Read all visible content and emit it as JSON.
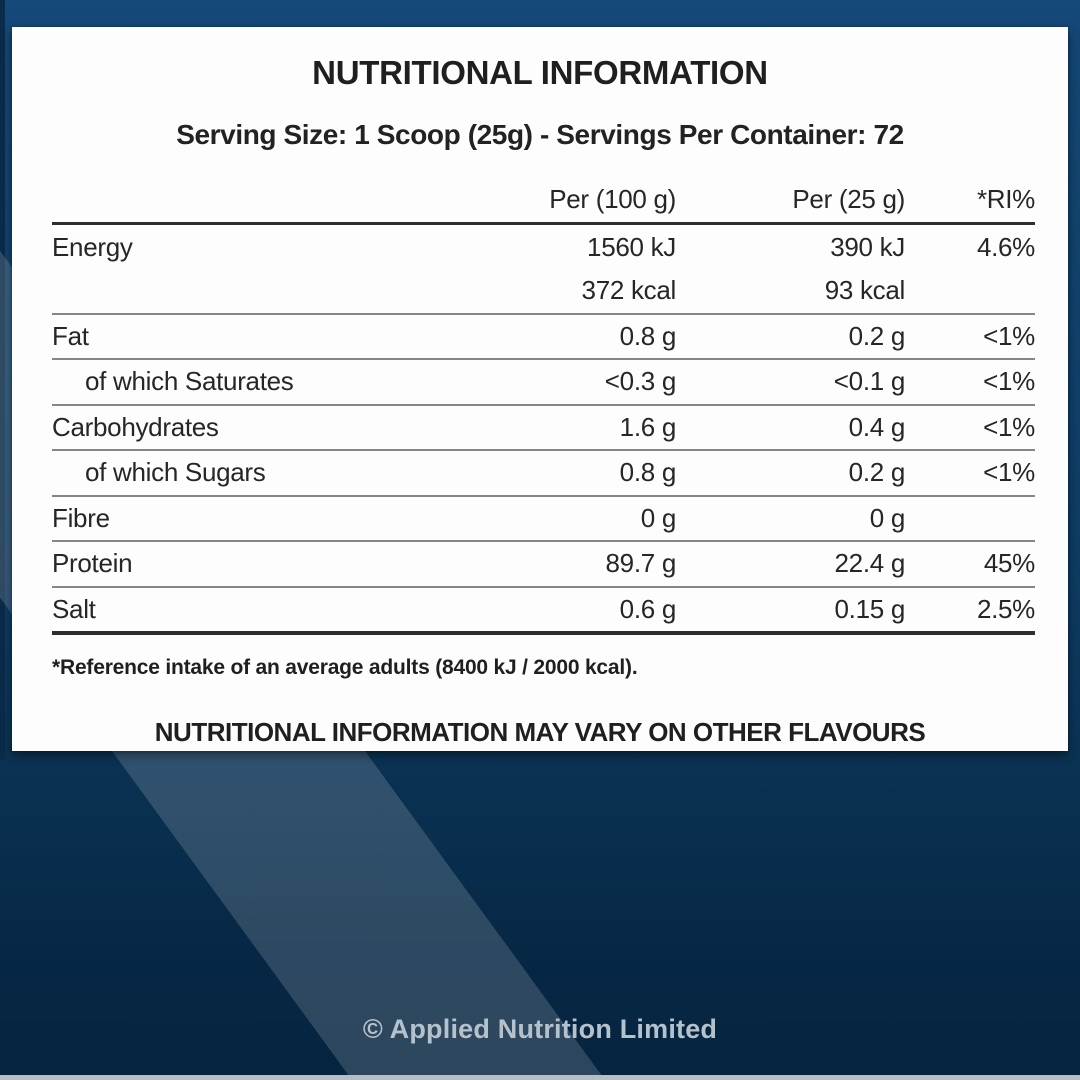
{
  "label": {
    "title": "NUTRITIONAL INFORMATION",
    "serving_info": "Serving Size: 1 Scoop (25g) - Servings Per Container: 72",
    "columns": {
      "per100": "Per (100 g)",
      "per25": "Per (25 g)",
      "ri": "*RI%"
    },
    "rows": [
      {
        "label": "Energy",
        "per100": "1560 kJ",
        "per25": "390 kJ",
        "ri": "4.6%"
      },
      {
        "label": "",
        "per100": "372 kcal",
        "per25": "93 kcal",
        "ri": ""
      },
      {
        "label": "Fat",
        "per100": "0.8 g",
        "per25": "0.2 g",
        "ri": "<1%"
      },
      {
        "label": "of which Saturates",
        "per100": "<0.3 g",
        "per25": "<0.1 g",
        "ri": "<1%"
      },
      {
        "label": "Carbohydrates",
        "per100": "1.6 g",
        "per25": "0.4 g",
        "ri": "<1%"
      },
      {
        "label": "of which Sugars",
        "per100": "0.8 g",
        "per25": "0.2 g",
        "ri": "<1%"
      },
      {
        "label": "Fibre",
        "per100": "0 g",
        "per25": "0 g",
        "ri": ""
      },
      {
        "label": "Protein",
        "per100": "89.7 g",
        "per25": "22.4 g",
        "ri": "45%"
      },
      {
        "label": "Salt",
        "per100": "0.6 g",
        "per25": "0.15 g",
        "ri": "2.5%"
      }
    ],
    "footnote": "*Reference intake of an average adults (8400 kJ / 2000 kcal).",
    "variation_note": "NUTRITIONAL INFORMATION MAY VARY ON OTHER FLAVOURS"
  },
  "footer": {
    "copyright": "© Applied Nutrition Limited"
  },
  "colors": {
    "background_top": "#15497B",
    "background_bottom": "#052440",
    "diagonal_stripe": "#2C4F6B",
    "panel": "#FDFDFD",
    "text": "#262626",
    "rule_dark": "#2E2E2E",
    "rule_gray": "#868686",
    "footer_text": "#B5C2CC",
    "bottom_strip": "#B6BDC3"
  }
}
